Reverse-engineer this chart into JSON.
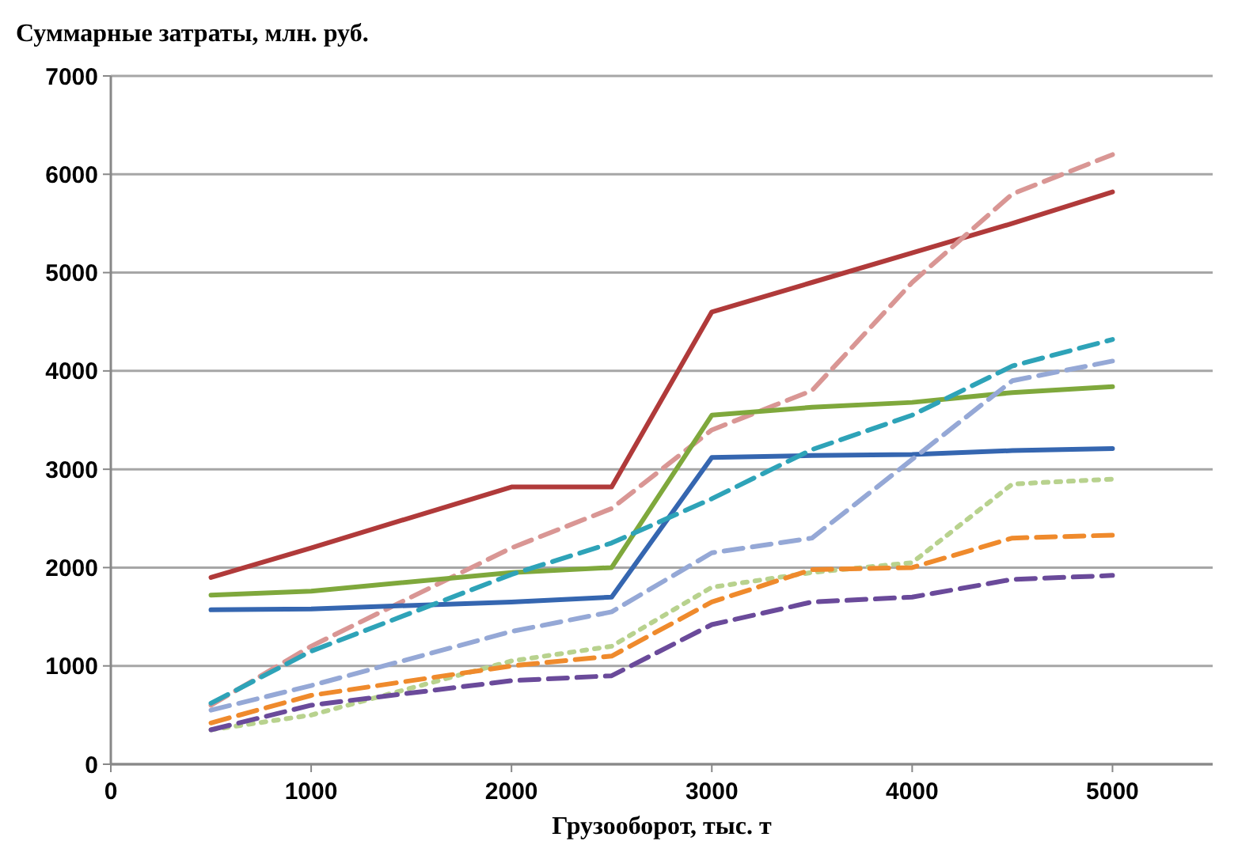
{
  "chart_data": {
    "type": "line",
    "title": "Суммарные затраты, млн. руб.",
    "xlabel": "Грузооборот, тыс. т",
    "x": [
      500,
      1000,
      2000,
      2500,
      3000,
      3500,
      4000,
      4500,
      5000
    ],
    "xlim": [
      0,
      5500
    ],
    "xticks": [
      0,
      1000,
      2000,
      3000,
      4000,
      5000
    ],
    "ylim": [
      0,
      7000
    ],
    "yticks": [
      0,
      1000,
      2000,
      3000,
      4000,
      5000,
      6000,
      7000
    ],
    "grid": "y",
    "marker": "none",
    "series": [
      {
        "color": "#b03a3a",
        "line_style": "solid",
        "values": [
          1900,
          2200,
          2820,
          2820,
          4600,
          4900,
          5200,
          5500,
          5820
        ]
      },
      {
        "color": "#d99694",
        "line_style": "dashed",
        "values": [
          600,
          1200,
          2200,
          2600,
          3400,
          3800,
          4900,
          5800,
          6200
        ]
      },
      {
        "color": "#7fa83c",
        "line_style": "solid",
        "values": [
          1720,
          1760,
          1950,
          2000,
          3550,
          3630,
          3680,
          3780,
          3840
        ]
      },
      {
        "color": "#3566b0",
        "line_style": "solid",
        "values": [
          1570,
          1580,
          1650,
          1700,
          3120,
          3140,
          3150,
          3190,
          3210
        ]
      },
      {
        "color": "#2ea3b8",
        "line_style": "dashed",
        "values": [
          620,
          1150,
          1930,
          2250,
          2700,
          3200,
          3550,
          4050,
          4320
        ]
      },
      {
        "color": "#95a8d6",
        "line_style": "dashed",
        "values": [
          550,
          800,
          1350,
          1550,
          2150,
          2300,
          3100,
          3900,
          4100
        ]
      },
      {
        "color": "#b8d28e",
        "line_style": "dotted",
        "values": [
          350,
          500,
          1050,
          1200,
          1800,
          1950,
          2050,
          2850,
          2900
        ]
      },
      {
        "color": "#ef8a2c",
        "line_style": "dashed",
        "values": [
          420,
          700,
          1000,
          1100,
          1650,
          1980,
          2000,
          2300,
          2330
        ]
      },
      {
        "color": "#6a4a9a",
        "line_style": "dashed",
        "values": [
          350,
          600,
          850,
          900,
          1420,
          1650,
          1700,
          1880,
          1920
        ]
      }
    ]
  }
}
